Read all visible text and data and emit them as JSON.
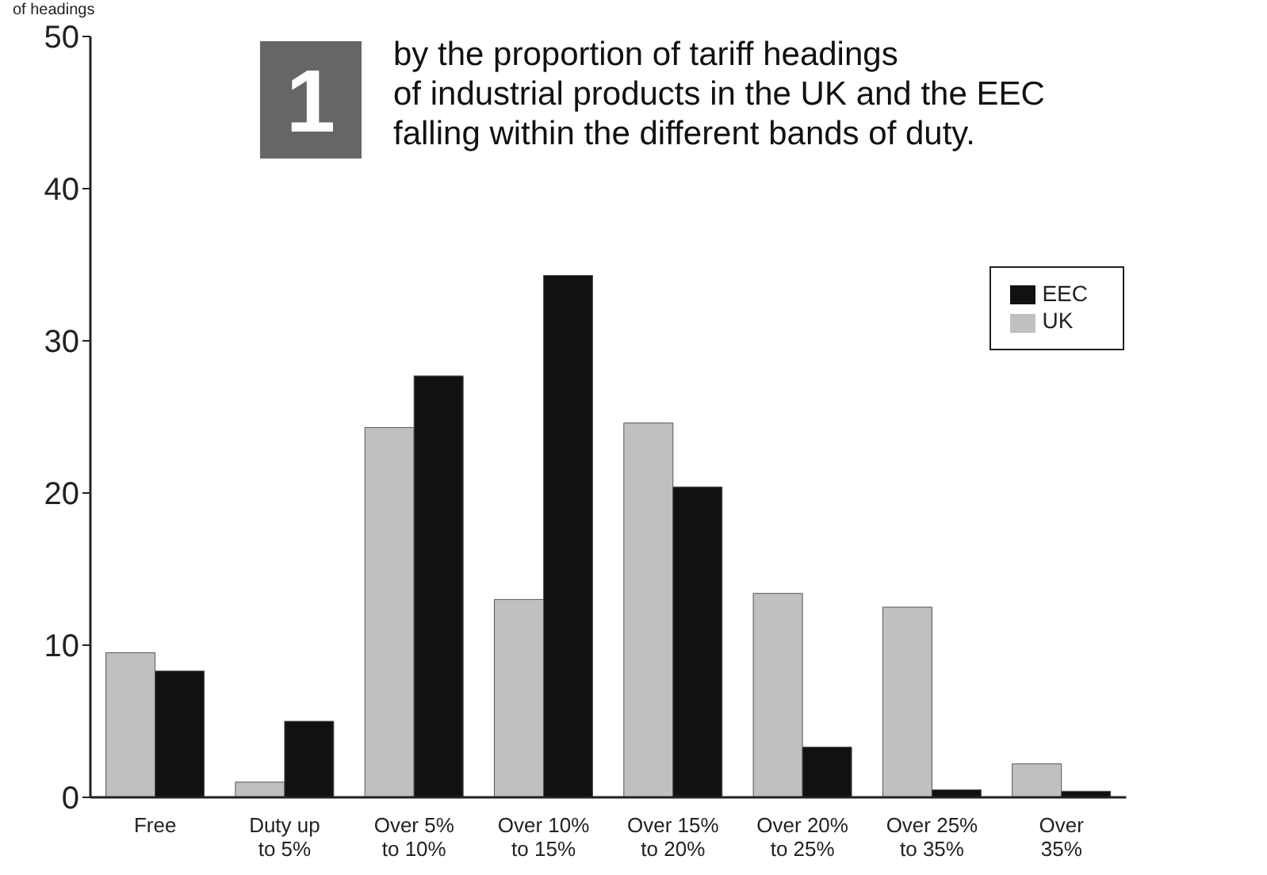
{
  "chart_data": {
    "type": "bar",
    "title": "by the proportion of tariff headings\nof industrial products in the UK and the EEC\nfalling within the different bands of duty.",
    "ylabel": "of headings",
    "annotations": [
      "1"
    ],
    "categories": [
      "Free",
      "Duty up\nto 5%",
      "Over 5%\nto 10%",
      "Over 10%\nto 15%",
      "Over 15%\nto 20%",
      "Over 20%\nto 25%",
      "Over 25%\nto 35%",
      "Over\n35%"
    ],
    "series": [
      {
        "name": "UK",
        "color": "#c0c0c0",
        "values": [
          9.5,
          1.0,
          24.3,
          13.0,
          24.6,
          13.4,
          12.5,
          2.2
        ]
      },
      {
        "name": "EEC",
        "color": "#111111",
        "values": [
          8.3,
          5.0,
          27.7,
          34.3,
          20.4,
          3.3,
          0.5,
          0.4
        ]
      }
    ],
    "ylim": [
      0,
      50
    ],
    "yticks": [
      0,
      10,
      20,
      30,
      40,
      50
    ],
    "legend": "top right"
  }
}
